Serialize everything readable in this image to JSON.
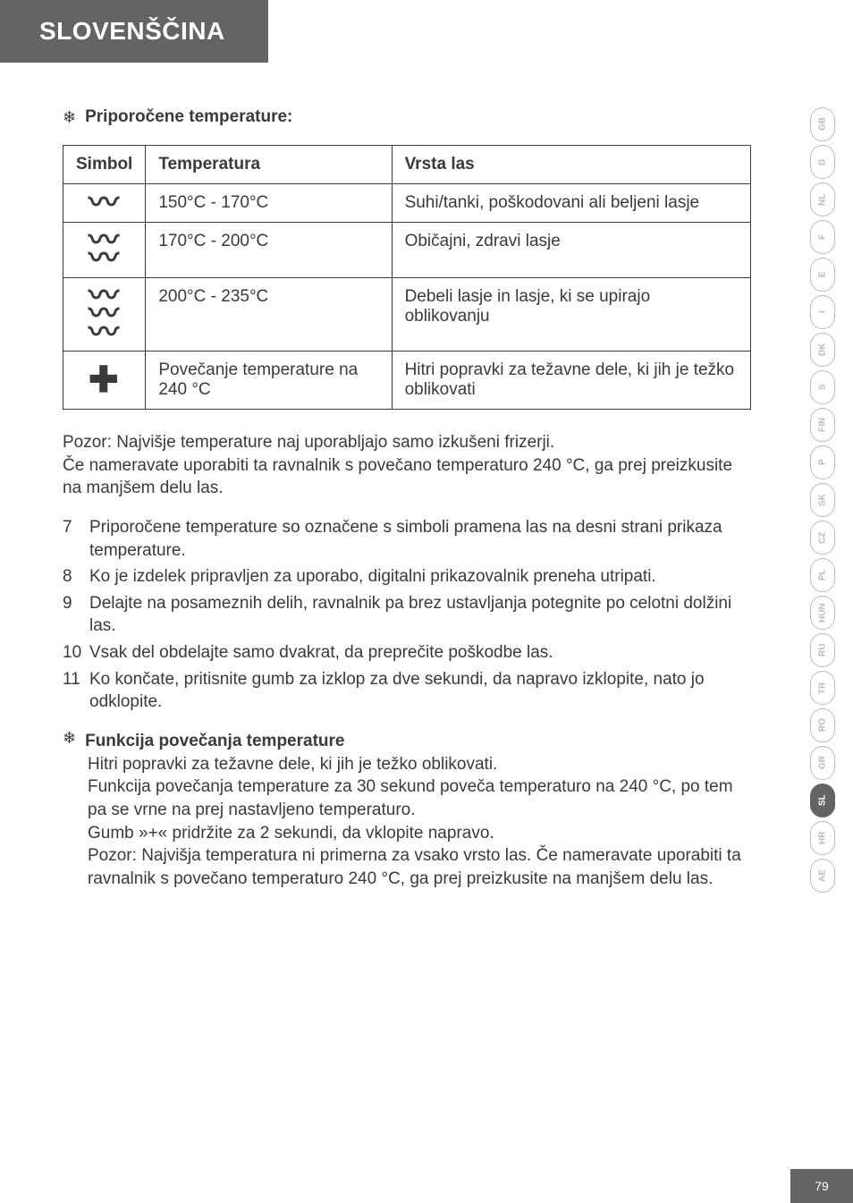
{
  "header": {
    "title": "SLOVENŠČINA"
  },
  "section1": {
    "icon": "❄",
    "label": "Priporočene temperature:"
  },
  "table": {
    "head": {
      "c1": "Simbol",
      "c2": "Temperatura",
      "c3": "Vrsta las"
    },
    "rows": [
      {
        "sym_waves": 1,
        "temp": "150°C - 170°C",
        "hair": "Suhi/tanki, poškodovani ali beljeni lasje"
      },
      {
        "sym_waves": 2,
        "temp": "170°C - 200°C",
        "hair": "Običajni, zdravi lasje"
      },
      {
        "sym_waves": 3,
        "temp": "200°C - 235°C",
        "hair": "Debeli lasje in lasje, ki se upirajo oblikovanju"
      },
      {
        "sym_plus": true,
        "temp": "Povečanje temperature na 240 °C",
        "hair": "Hitri popravki za težavne dele, ki jih je težko oblikovati"
      }
    ]
  },
  "caution": "Pozor: Najvišje temperature naj uporabljajo samo izkušeni frizerji.\nČe nameravate uporabiti ta ravnalnik s povečano temperaturo 240 °C, ga prej preizkusite na manjšem delu las.",
  "steps": [
    {
      "n": "7",
      "t": "Priporočene temperature so označene s simboli pramena las na desni strani prikaza temperature."
    },
    {
      "n": "8",
      "t": "Ko je izdelek pripravljen za uporabo, digitalni prikazovalnik preneha utripati."
    },
    {
      "n": "9",
      "t": "Delajte na posameznih delih, ravnalnik pa brez ustavljanja potegnite po celotni dolžini las."
    },
    {
      "n": "10",
      "t": "Vsak del obdelajte samo dvakrat, da preprečite poškodbe las."
    },
    {
      "n": "11",
      "t": "Ko končate, pritisnite gumb za izklop za dve sekundi, da napravo izklopite, nato jo odklopite."
    }
  ],
  "section2": {
    "icon": "❄",
    "label": "Funkcija povečanja temperature",
    "body": "Hitri popravki za težavne dele, ki jih je težko oblikovati.\nFunkcija povečanja temperature za 30 sekund poveča temperaturo na 240 °C, po tem pa se vrne na prej nastavljeno temperaturo.\nGumb »+« pridržite za 2 sekundi, da vklopite napravo.\nPozor: Najvišja temperatura ni primerna za vsako vrsto las. Če nameravate uporabiti ta ravnalnik s povečano temperaturo 240 °C, ga prej preizkusite na manjšem delu las."
  },
  "pills": [
    "GB",
    "D",
    "NL",
    "F",
    "E",
    "I",
    "DK",
    "S",
    "FIN",
    "P",
    "SK",
    "CZ",
    "PL",
    "HUN",
    "RU",
    "TR",
    "RO",
    "GR",
    "SL",
    "HR",
    "AE"
  ],
  "active_pill": "SL",
  "page_number": "79"
}
